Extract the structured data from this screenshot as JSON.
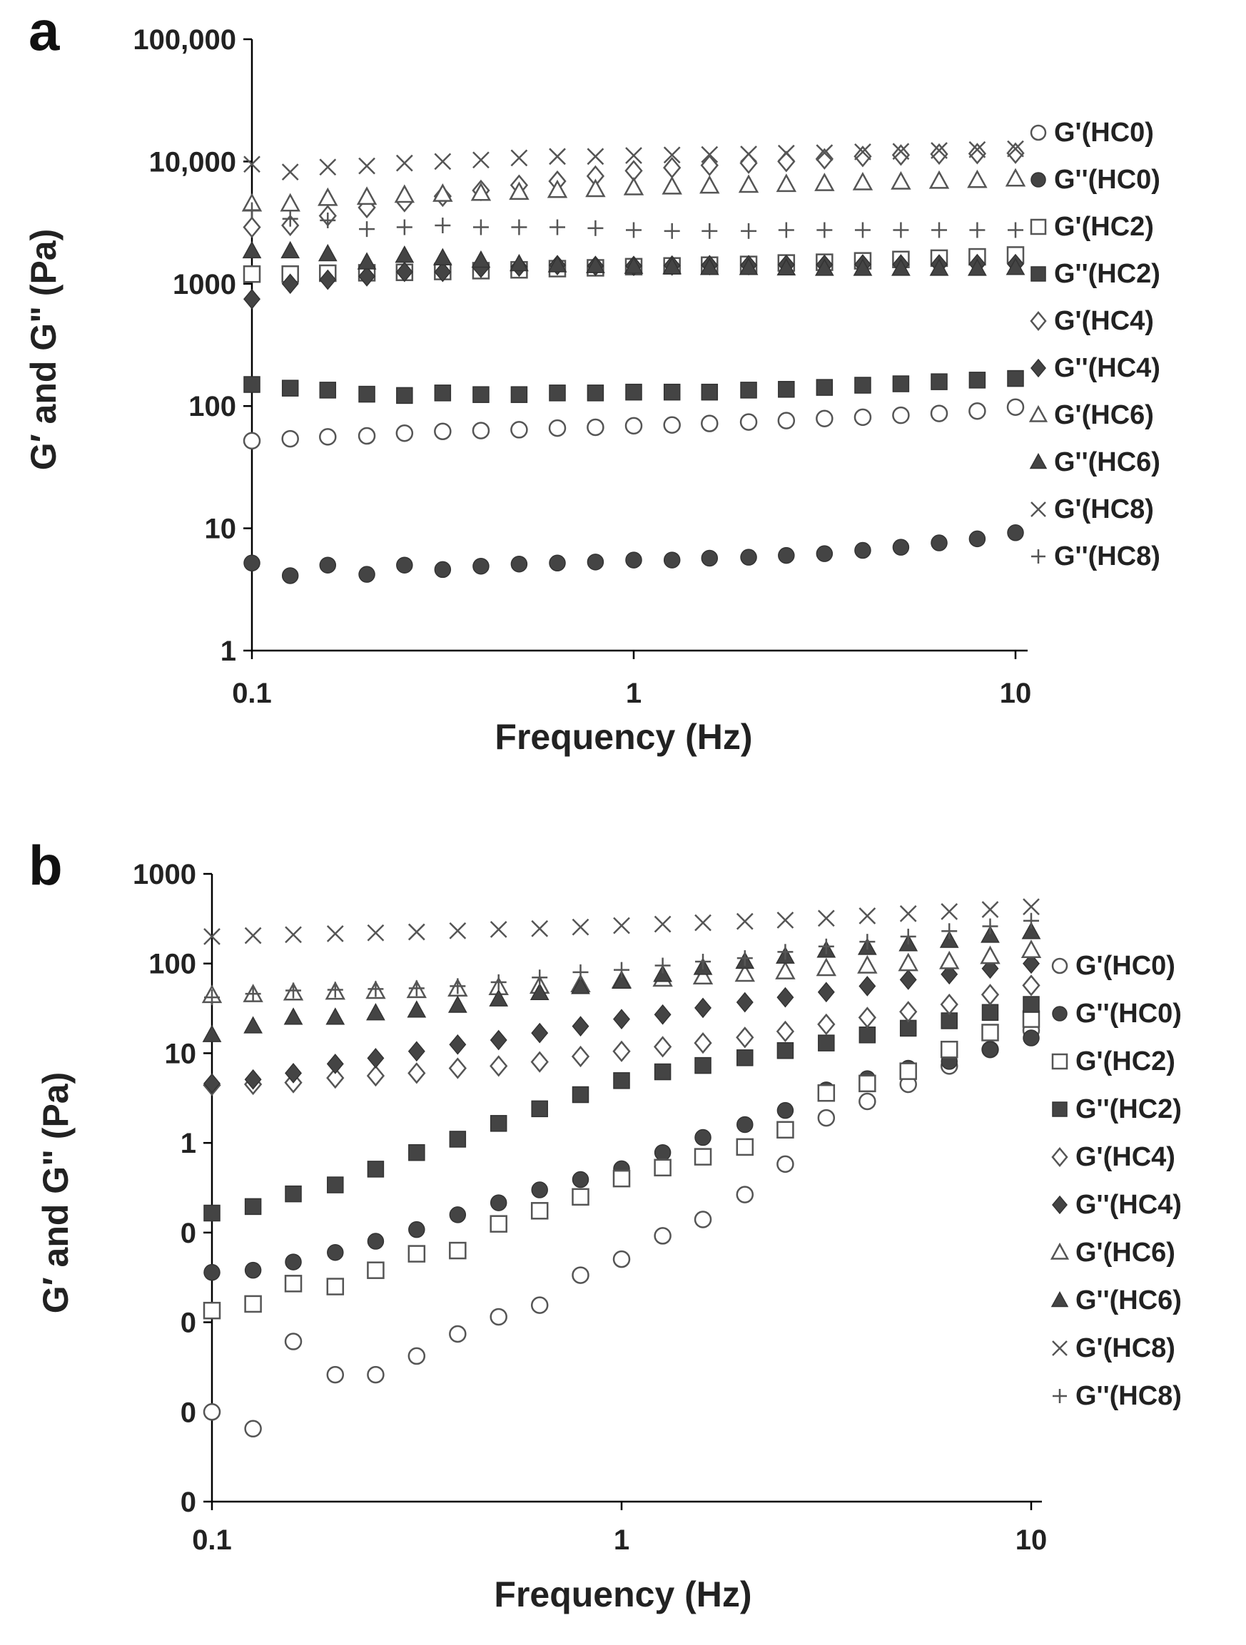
{
  "chart_data": [
    {
      "panel": "a",
      "type": "scatter",
      "xlabel": "Frequency (Hz)",
      "ylabel": "G′ and G\" (Pa)",
      "x_scale": "log",
      "y_scale": "log",
      "xlim": [
        0.1,
        10
      ],
      "ylim": [
        1,
        100000
      ],
      "x_ticks": [
        0.1,
        1,
        10
      ],
      "x_tick_labels": [
        "0.1",
        "1",
        "10"
      ],
      "y_ticks": [
        1,
        10,
        100,
        1000,
        10000,
        100000
      ],
      "y_tick_labels": [
        "1",
        "10",
        "100",
        "1000",
        "10,000",
        "100,000"
      ],
      "grid": false,
      "legend_position": "right",
      "x": [
        0.1,
        0.126,
        0.158,
        0.2,
        0.251,
        0.316,
        0.398,
        0.501,
        0.631,
        0.794,
        1,
        1.26,
        1.58,
        2,
        2.51,
        3.16,
        3.98,
        5.01,
        6.31,
        7.94,
        10
      ],
      "series": [
        {
          "name": "G'(HC0)",
          "marker": "circle-open",
          "values": [
            52,
            54,
            56,
            57,
            60,
            62,
            63,
            64,
            66,
            67,
            69,
            70,
            72,
            74,
            76,
            79,
            81,
            84,
            87,
            91,
            98
          ]
        },
        {
          "name": "G''(HC0)",
          "marker": "circle-filled",
          "values": [
            5.2,
            4.1,
            5.0,
            4.2,
            5.0,
            4.6,
            4.9,
            5.1,
            5.2,
            5.3,
            5.5,
            5.5,
            5.7,
            5.8,
            6.0,
            6.2,
            6.6,
            7.0,
            7.6,
            8.2,
            9.2
          ]
        },
        {
          "name": "G'(HC2)",
          "marker": "square-open",
          "values": [
            1200,
            1200,
            1220,
            1230,
            1240,
            1260,
            1280,
            1300,
            1330,
            1350,
            1380,
            1400,
            1420,
            1440,
            1480,
            1500,
            1540,
            1580,
            1620,
            1660,
            1720
          ]
        },
        {
          "name": "G''(HC2)",
          "marker": "square-filled",
          "values": [
            150,
            140,
            135,
            125,
            122,
            128,
            124,
            124,
            128,
            128,
            130,
            130,
            130,
            135,
            137,
            142,
            148,
            152,
            158,
            163,
            168
          ]
        },
        {
          "name": "G'(HC4)",
          "marker": "diamond-open",
          "values": [
            2900,
            3000,
            3600,
            4200,
            4700,
            5200,
            5800,
            6400,
            6900,
            7600,
            8400,
            8900,
            9300,
            9700,
            10000,
            10500,
            11000,
            11300,
            11500,
            11600,
            11700
          ]
        },
        {
          "name": "G''(HC4)",
          "marker": "diamond-filled",
          "values": [
            750,
            1000,
            1080,
            1150,
            1250,
            1250,
            1350,
            1380,
            1420,
            1400,
            1400,
            1410,
            1420,
            1420,
            1430,
            1430,
            1440,
            1440,
            1440,
            1450,
            1450
          ]
        },
        {
          "name": "G'(HC6)",
          "marker": "triangle-open",
          "values": [
            4500,
            4500,
            5000,
            5100,
            5300,
            5400,
            5500,
            5600,
            5800,
            5900,
            6100,
            6200,
            6300,
            6400,
            6500,
            6600,
            6700,
            6800,
            6900,
            7000,
            7200
          ]
        },
        {
          "name": "G''(HC6)",
          "marker": "triangle-filled",
          "values": [
            1850,
            1850,
            1750,
            1500,
            1700,
            1620,
            1550,
            1450,
            1420,
            1400,
            1380,
            1370,
            1350,
            1350,
            1340,
            1330,
            1330,
            1330,
            1330,
            1330,
            1350
          ]
        },
        {
          "name": "G'(HC8)",
          "marker": "x",
          "values": [
            9500,
            8200,
            9000,
            9200,
            9700,
            10000,
            10300,
            10700,
            11000,
            11000,
            11200,
            11300,
            11400,
            11500,
            11700,
            11800,
            12000,
            12100,
            12300,
            12500,
            12700
          ]
        },
        {
          "name": "G''(HC8)",
          "marker": "plus",
          "values": [
            4000,
            3400,
            3300,
            2800,
            2900,
            3000,
            2900,
            2900,
            2900,
            2850,
            2750,
            2700,
            2700,
            2700,
            2750,
            2750,
            2750,
            2750,
            2750,
            2750,
            2750
          ]
        }
      ]
    },
    {
      "panel": "b",
      "type": "scatter",
      "xlabel": "Frequency (Hz)",
      "ylabel": "G′ and G\" (Pa)",
      "x_scale": "log",
      "y_scale": "log",
      "xlim": [
        0.1,
        10
      ],
      "ylim": [
        0.0001,
        1000
      ],
      "x_ticks": [
        0.1,
        1,
        10
      ],
      "x_tick_labels": [
        "0.1",
        "1",
        "10"
      ],
      "y_ticks": [
        0.0001,
        0.001,
        0.01,
        0.1,
        1,
        10,
        100,
        1000
      ],
      "y_tick_labels": [
        "0",
        "0",
        "0",
        "0",
        "1",
        "10",
        "100",
        "1000"
      ],
      "grid": false,
      "legend_position": "right",
      "x": [
        0.1,
        0.126,
        0.158,
        0.2,
        0.251,
        0.316,
        0.398,
        0.501,
        0.631,
        0.794,
        1,
        1.26,
        1.58,
        2,
        2.51,
        3.16,
        3.98,
        5.01,
        6.31,
        7.94,
        10
      ],
      "series": [
        {
          "name": "G'(HC0)",
          "marker": "circle-open",
          "values": [
            0.001,
            0.00065,
            0.0061,
            0.0026,
            0.0026,
            0.0042,
            0.0074,
            0.0115,
            0.0155,
            0.0335,
            0.0505,
            0.092,
            0.14,
            0.265,
            0.58,
            1.9,
            2.9,
            4.5,
            7.2,
            11,
            18
          ]
        },
        {
          "name": "G''(HC0)",
          "marker": "circle-filled",
          "values": [
            0.036,
            0.038,
            0.047,
            0.06,
            0.08,
            0.108,
            0.158,
            0.215,
            0.299,
            0.39,
            0.515,
            0.78,
            1.15,
            1.6,
            2.3,
            3.9,
            5.2,
            6.8,
            8.1,
            11,
            14.8
          ]
        },
        {
          "name": "G'(HC2)",
          "marker": "square-open",
          "values": [
            0.0135,
            0.016,
            0.027,
            0.025,
            0.038,
            0.058,
            0.063,
            0.125,
            0.175,
            0.25,
            0.4,
            0.53,
            0.7,
            0.9,
            1.4,
            3.6,
            4.6,
            6.3,
            11,
            17,
            24
          ]
        },
        {
          "name": "G''(HC2)",
          "marker": "square-filled",
          "values": [
            0.165,
            0.195,
            0.27,
            0.34,
            0.51,
            0.78,
            1.1,
            1.65,
            2.4,
            3.45,
            4.95,
            6.2,
            7.3,
            8.9,
            10.7,
            13,
            16,
            19,
            23,
            28.5,
            35
          ]
        },
        {
          "name": "G'(HC4)",
          "marker": "diamond-open",
          "values": [
            4.4,
            4.5,
            4.7,
            5.3,
            5.6,
            6.0,
            6.8,
            7.2,
            8.0,
            9.2,
            10.5,
            11.8,
            13,
            15,
            17.5,
            21,
            25,
            29,
            35,
            45,
            57
          ]
        },
        {
          "name": "G''(HC4)",
          "marker": "diamond-filled",
          "values": [
            4.6,
            5.1,
            6.0,
            7.6,
            8.8,
            10.5,
            12.5,
            14,
            16.8,
            20,
            24,
            27,
            32,
            37,
            42,
            48,
            56,
            66,
            76,
            88,
            100
          ]
        },
        {
          "name": "G'(HC6)",
          "marker": "triangle-open",
          "values": [
            44,
            45,
            47,
            48,
            49,
            50,
            52,
            54,
            56,
            58,
            64,
            67,
            71,
            76,
            81,
            88,
            94,
            100,
            105,
            120,
            140
          ]
        },
        {
          "name": "G''(HC6)",
          "marker": "triangle-filled",
          "values": [
            16,
            20,
            25,
            25,
            28,
            30,
            34,
            40,
            47,
            55,
            63,
            75,
            90,
            105,
            120,
            140,
            150,
            165,
            180,
            205,
            225
          ]
        },
        {
          "name": "G'(HC8)",
          "marker": "x",
          "values": [
            200,
            205,
            210,
            215,
            220,
            225,
            232,
            240,
            245,
            255,
            265,
            275,
            285,
            295,
            305,
            320,
            340,
            360,
            380,
            400,
            430
          ]
        },
        {
          "name": "G''(HC8)",
          "marker": "plus",
          "values": [
            42,
            46,
            50,
            51,
            52,
            53,
            56,
            62,
            70,
            80,
            85,
            95,
            105,
            115,
            135,
            155,
            175,
            200,
            230,
            260,
            300
          ]
        }
      ]
    }
  ]
}
